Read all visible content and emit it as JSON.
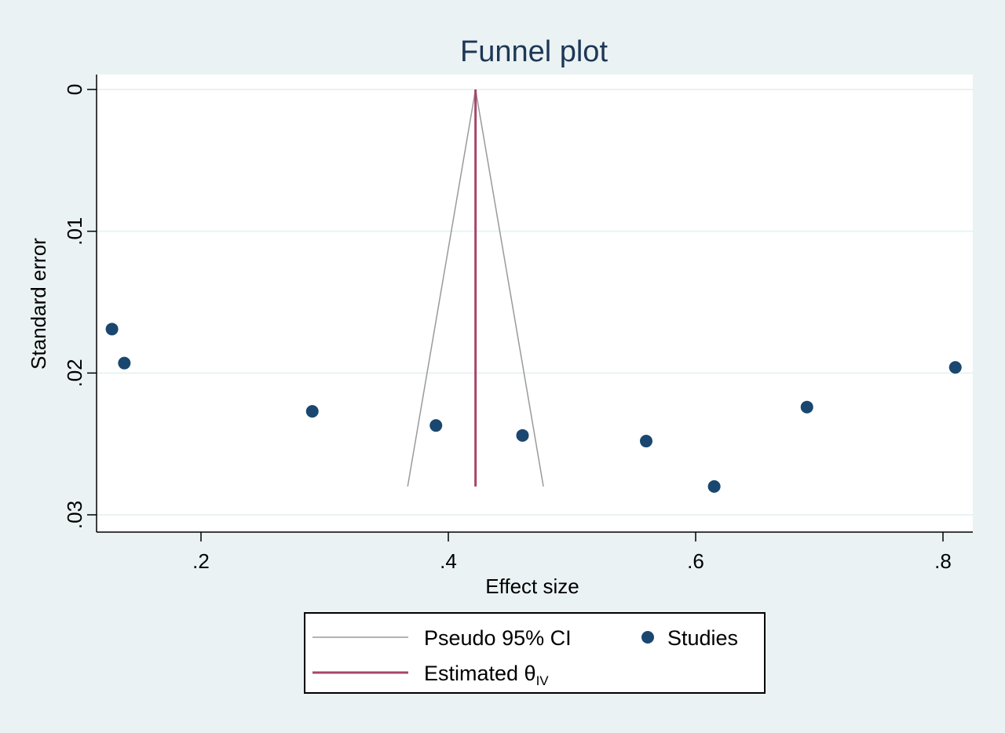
{
  "chart_data": {
    "type": "scatter",
    "title": "Funnel plot",
    "xlabel": "Effect size",
    "ylabel": "Standard error",
    "xlim": [
      0.117,
      0.828
    ],
    "ylim": [
      0.03,
      0
    ],
    "y_reversed": true,
    "x_ticks": [
      {
        "value": 0.2,
        "label": ".2"
      },
      {
        "value": 0.4,
        "label": ".4"
      },
      {
        "value": 0.6,
        "label": ".6"
      },
      {
        "value": 0.8,
        "label": ".8"
      }
    ],
    "y_ticks": [
      {
        "value": 0,
        "label": "0"
      },
      {
        "value": 0.01,
        "label": ".01"
      },
      {
        "value": 0.02,
        "label": ".02"
      },
      {
        "value": 0.03,
        "label": ".03"
      }
    ],
    "grid": true,
    "estimate": 0.422,
    "ci_max_se": 0.028,
    "series": [
      {
        "name": "Studies",
        "color": "#1a476f",
        "points": [
          {
            "x": 0.128,
            "y": 0.0169
          },
          {
            "x": 0.138,
            "y": 0.0193
          },
          {
            "x": 0.29,
            "y": 0.0227
          },
          {
            "x": 0.39,
            "y": 0.0237
          },
          {
            "x": 0.46,
            "y": 0.0244
          },
          {
            "x": 0.56,
            "y": 0.0248
          },
          {
            "x": 0.615,
            "y": 0.028
          },
          {
            "x": 0.69,
            "y": 0.0224
          },
          {
            "x": 0.81,
            "y": 0.0196
          }
        ]
      }
    ],
    "ci_color": "#9a9a9a",
    "estimate_color": "#a8446a",
    "legend": {
      "placement": "bottom",
      "ci_label": "Pseudo 95% CI",
      "studies_label": "Studies",
      "estimate_label": "Estimated θ",
      "estimate_subscript": "IV"
    }
  }
}
